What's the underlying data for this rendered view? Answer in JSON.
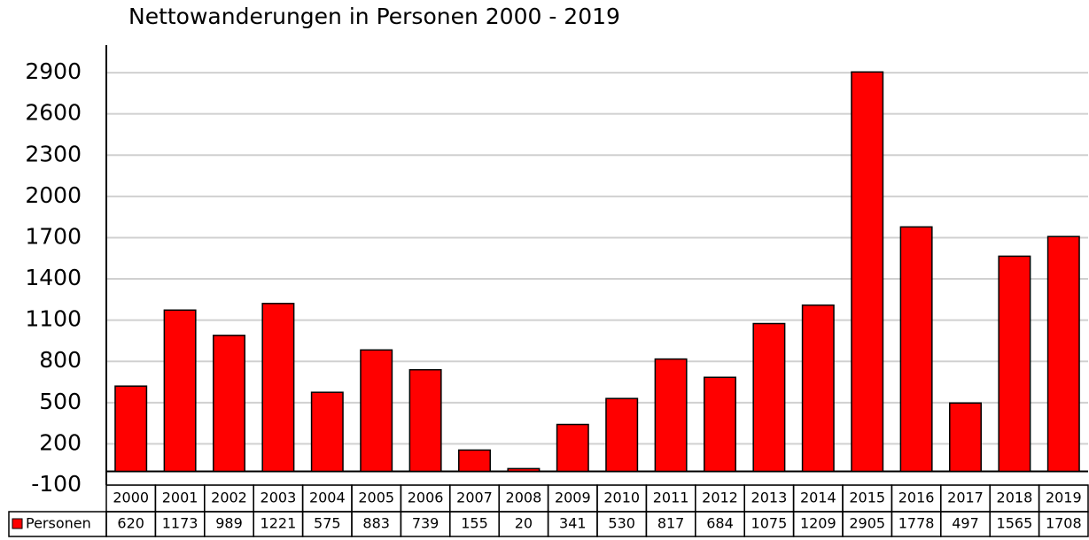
{
  "chart_data": {
    "type": "bar",
    "title": "Nettowanderungen in Personen  2000 - 2019",
    "categories": [
      "2000",
      "2001",
      "2002",
      "2003",
      "2004",
      "2005",
      "2006",
      "2007",
      "2008",
      "2009",
      "2010",
      "2011",
      "2012",
      "2013",
      "2014",
      "2015",
      "2016",
      "2017",
      "2018",
      "2019"
    ],
    "series": [
      {
        "name": "Personen",
        "color": "#ff0000",
        "values": [
          620,
          1173,
          989,
          1221,
          575,
          883,
          739,
          155,
          20,
          341,
          530,
          817,
          684,
          1075,
          1209,
          2905,
          1778,
          497,
          1565,
          1708
        ]
      }
    ],
    "ylim": [
      -100,
      3100
    ],
    "yticks": [
      -100,
      200,
      500,
      800,
      1100,
      1400,
      1700,
      2000,
      2300,
      2600,
      2900
    ],
    "grid": true
  }
}
